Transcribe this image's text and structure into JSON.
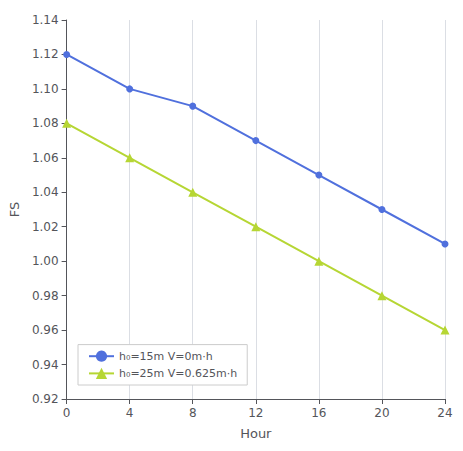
{
  "chart_data": {
    "type": "line",
    "x": [
      0,
      4,
      8,
      12,
      16,
      20,
      24
    ],
    "series": [
      {
        "name": "h₀=15m V=0m·h",
        "values": [
          1.12,
          1.1,
          1.09,
          1.07,
          1.05,
          1.03,
          1.01
        ],
        "marker": "circle"
      },
      {
        "name": "h₀=25m V=0.625m·h",
        "values": [
          1.08,
          1.06,
          1.04,
          1.02,
          1.0,
          0.98,
          0.96
        ],
        "marker": "triangle"
      }
    ],
    "x_label": "Hour",
    "y_label": "FS",
    "xlim": [
      0,
      24
    ],
    "xticks": [
      0,
      4,
      8,
      12,
      16,
      20,
      24
    ],
    "ylim": [
      0.92,
      1.14
    ],
    "yticks": [
      0.92,
      0.94,
      0.96,
      0.98,
      {
        "value": 1.0,
        "label": "1.00"
      },
      1.02,
      1.04,
      1.06,
      1.08,
      {
        "value": 1.1,
        "label": "1.10"
      },
      1.12,
      1.14
    ],
    "grid": "x",
    "legend": "lower left"
  }
}
